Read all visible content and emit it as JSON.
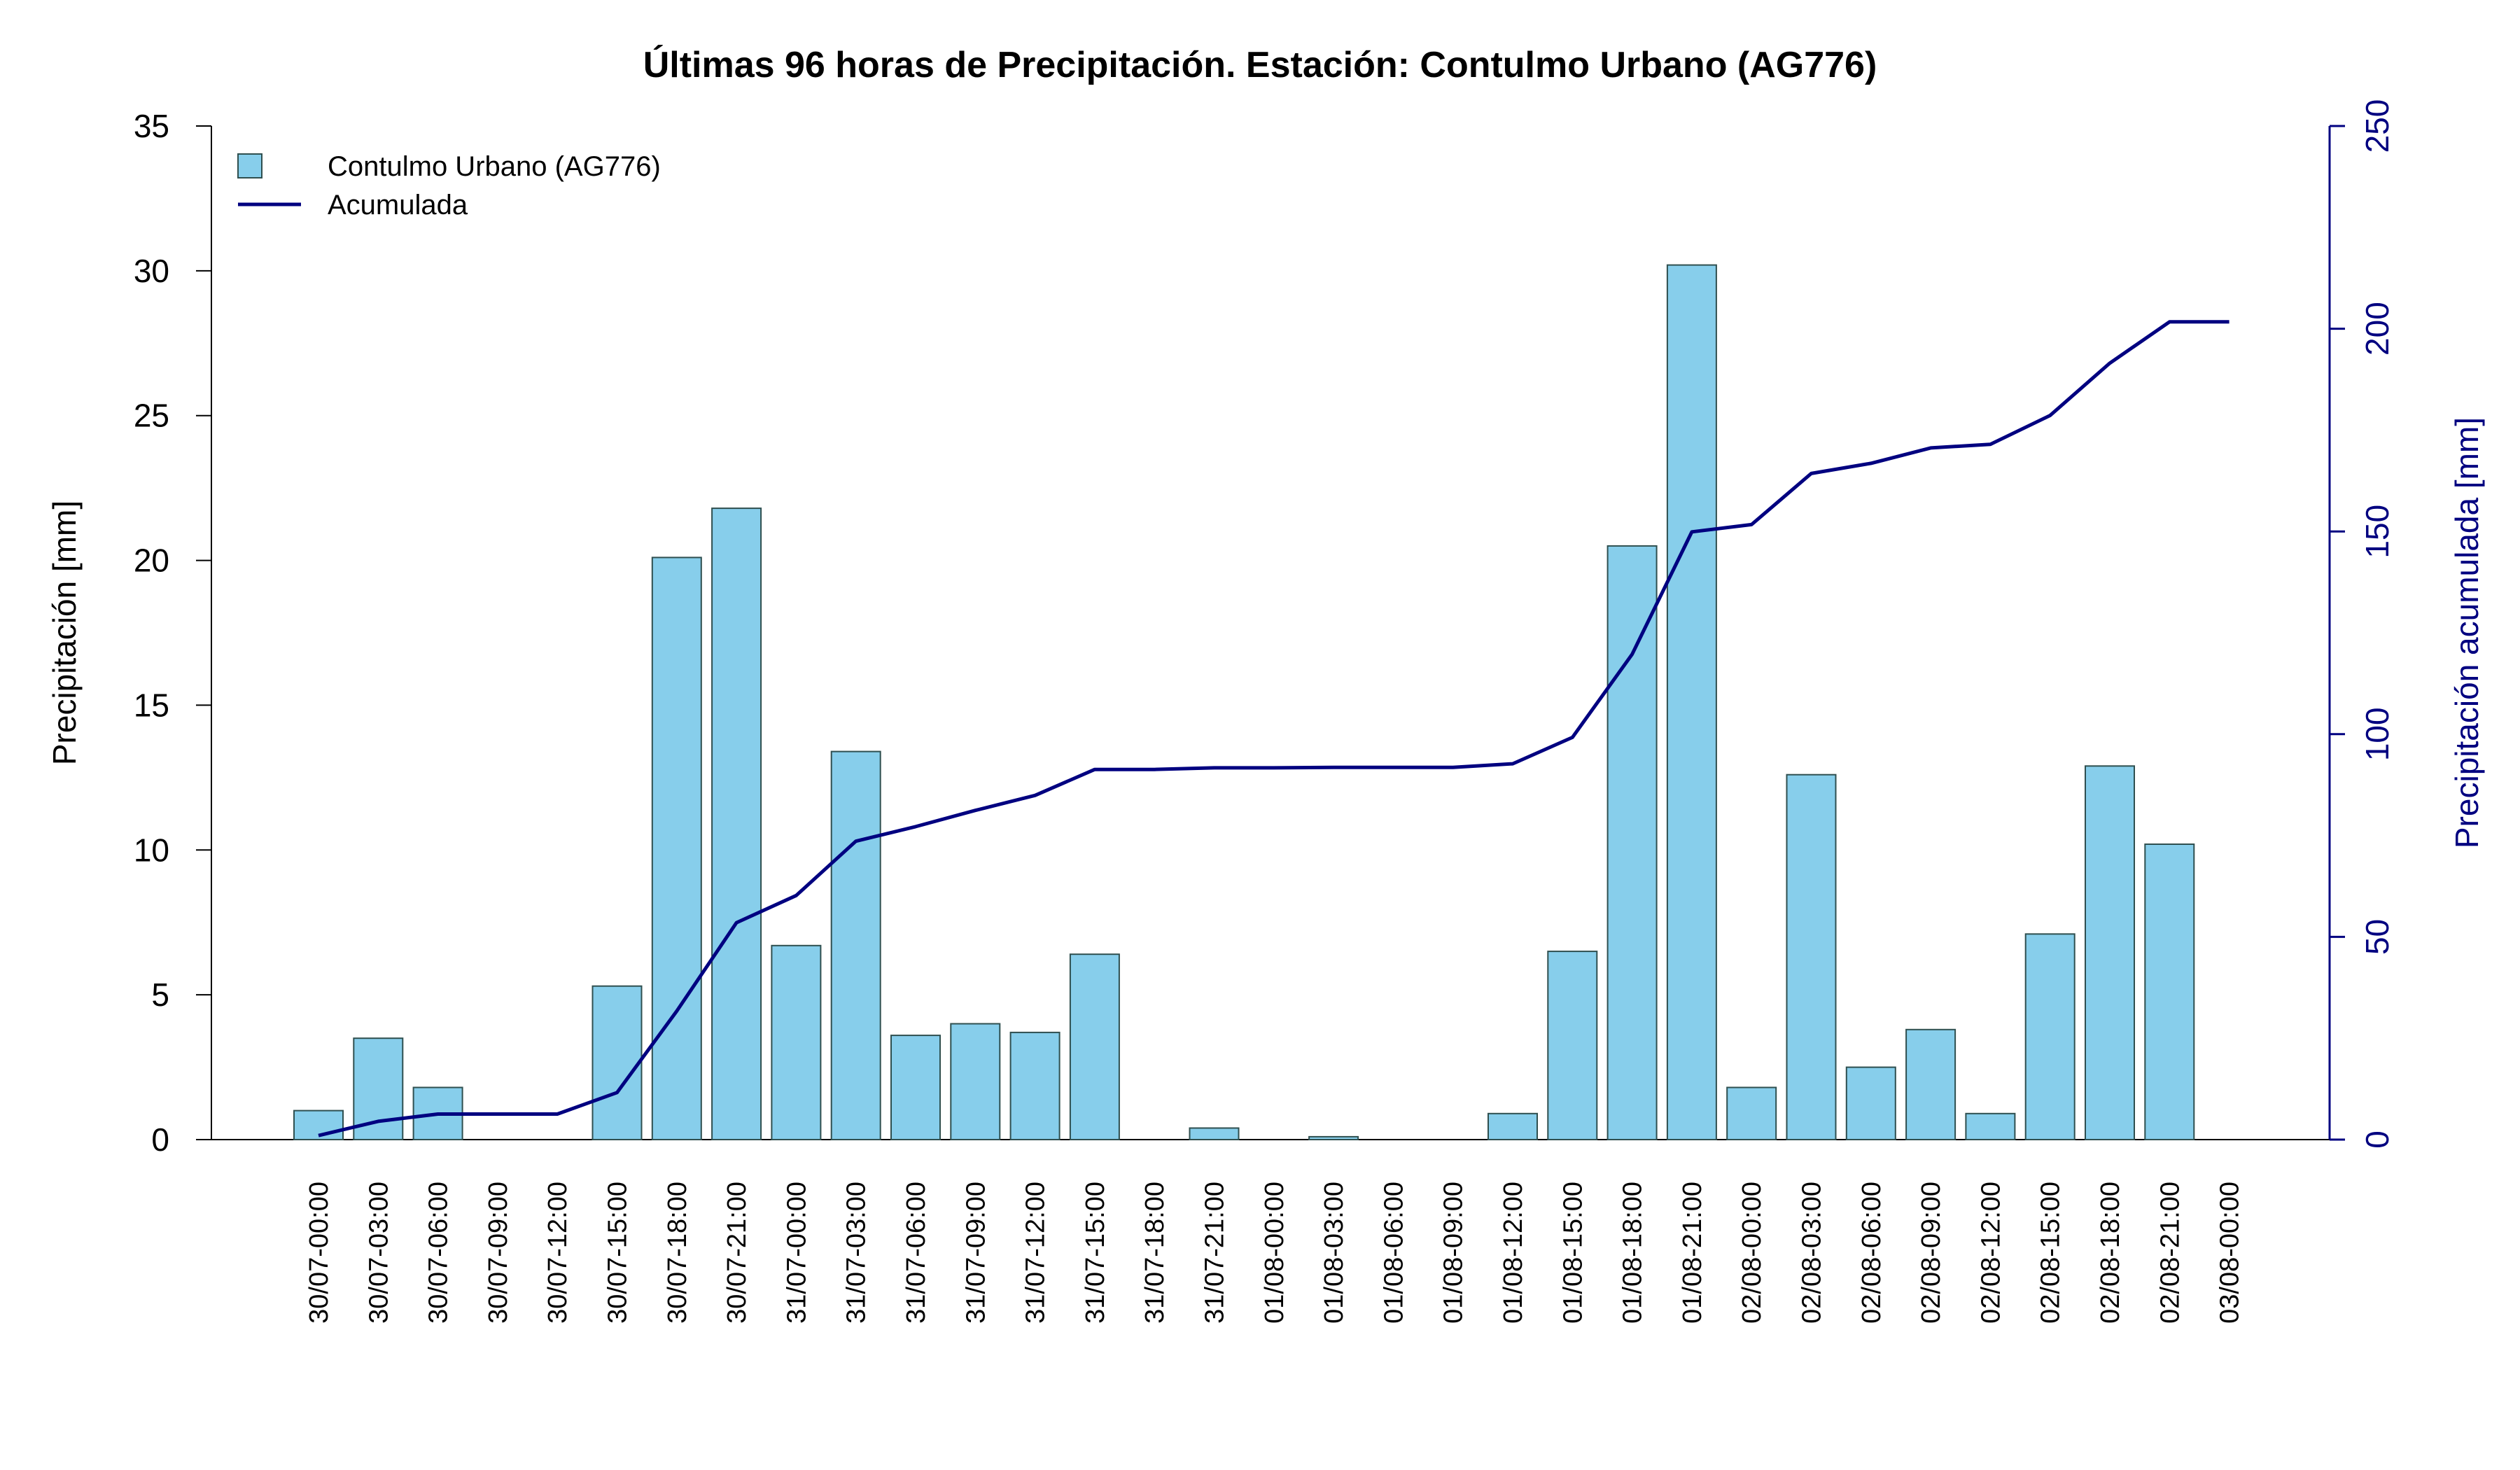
{
  "chart_data": {
    "type": "bar",
    "title": "Últimas 96 horas de Precipitación. Estación: Contulmo Urbano (AG776)",
    "ylabel": "Precipitación [mm]",
    "y2label": "Precipitación acumulada [mm]",
    "ylim": [
      0,
      35
    ],
    "y2lim": [
      0,
      250
    ],
    "yticks": [
      0,
      5,
      10,
      15,
      20,
      25,
      30,
      35
    ],
    "y2ticks": [
      0,
      50,
      100,
      150,
      200,
      250
    ],
    "grid": false,
    "legend_position": "top-left",
    "colors": {
      "bar_fill": "#87CEEB",
      "bar_stroke": "#2F4F4F",
      "line": "#000080",
      "right_axis": "#000080"
    },
    "categories": [
      "30/07-00:00",
      "30/07-03:00",
      "30/07-06:00",
      "30/07-09:00",
      "30/07-12:00",
      "30/07-15:00",
      "30/07-18:00",
      "30/07-21:00",
      "31/07-00:00",
      "31/07-03:00",
      "31/07-06:00",
      "31/07-09:00",
      "31/07-12:00",
      "31/07-15:00",
      "31/07-18:00",
      "31/07-21:00",
      "01/08-00:00",
      "01/08-03:00",
      "01/08-06:00",
      "01/08-09:00",
      "01/08-12:00",
      "01/08-15:00",
      "01/08-18:00",
      "01/08-21:00",
      "02/08-00:00",
      "02/08-03:00",
      "02/08-06:00",
      "02/08-09:00",
      "02/08-12:00",
      "02/08-15:00",
      "02/08-18:00",
      "02/08-21:00",
      "03/08-00:00"
    ],
    "series": [
      {
        "name": "Contulmo Urbano (AG776)",
        "type": "bar",
        "axis": "left",
        "values": [
          1.0,
          3.5,
          1.8,
          0,
          0,
          5.3,
          20.1,
          21.8,
          6.7,
          13.4,
          3.6,
          4.0,
          3.7,
          6.4,
          0,
          0.4,
          0,
          0.1,
          0,
          0,
          0.9,
          6.5,
          20.5,
          30.2,
          1.8,
          12.6,
          2.5,
          3.8,
          0.9,
          7.1,
          12.9,
          10.2,
          0
        ]
      },
      {
        "name": "Acumulada",
        "type": "line",
        "axis": "right",
        "values": [
          1.0,
          4.5,
          6.3,
          6.3,
          6.3,
          11.6,
          31.7,
          53.5,
          60.2,
          73.6,
          77.2,
          81.2,
          84.9,
          91.3,
          91.3,
          91.7,
          91.7,
          91.8,
          91.8,
          91.8,
          92.7,
          99.2,
          119.7,
          149.9,
          151.7,
          164.3,
          166.8,
          170.6,
          171.5,
          178.6,
          191.5,
          201.7,
          201.7
        ]
      }
    ]
  }
}
